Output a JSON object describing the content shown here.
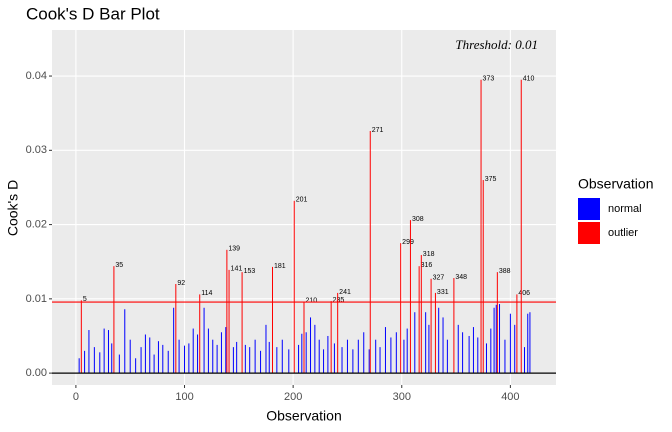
{
  "chart_data": {
    "type": "bar",
    "title": "Cook's D Bar Plot",
    "xlabel": "Observation",
    "ylabel": "Cook's D",
    "legend_title": "Observation",
    "legend_position": "right",
    "threshold": 0.00957,
    "threshold_label": "Threshold: 0.01",
    "threshold_color": "#ff0000",
    "threshold_label_color": "#8b0000",
    "xlim": [
      -22,
      442
    ],
    "xticks": [
      0,
      100,
      200,
      300,
      400
    ],
    "ylim": [
      -0.0016,
      0.0462
    ],
    "yticks": [
      {
        "value": 0,
        "label": "0.00"
      },
      0.01,
      0.02,
      0.03,
      0.04
    ],
    "grid": true,
    "series": [
      {
        "name": "normal",
        "color": "#0000ff",
        "x": [
          3,
          8,
          12,
          17,
          22,
          26,
          30,
          33,
          40,
          45,
          50,
          55,
          60,
          64,
          68,
          72,
          76,
          80,
          85,
          90,
          95,
          100,
          104,
          108,
          112,
          118,
          122,
          126,
          130,
          134,
          138,
          145,
          148,
          156,
          160,
          165,
          170,
          175,
          178,
          185,
          190,
          196,
          205,
          208,
          212,
          216,
          220,
          224,
          228,
          232,
          238,
          245,
          250,
          255,
          260,
          265,
          270,
          276,
          280,
          285,
          290,
          295,
          302,
          305,
          312,
          322,
          325,
          334,
          338,
          342,
          352,
          356,
          362,
          366,
          370,
          378,
          382,
          385,
          387,
          390,
          395,
          400,
          404,
          413,
          416,
          418
        ],
        "values": [
          0.002,
          0.003,
          0.0058,
          0.0035,
          0.0028,
          0.006,
          0.0058,
          0.004,
          0.0025,
          0.0086,
          0.0045,
          0.002,
          0.0035,
          0.0052,
          0.0048,
          0.0025,
          0.0043,
          0.0038,
          0.003,
          0.0088,
          0.0045,
          0.0037,
          0.004,
          0.006,
          0.0052,
          0.0088,
          0.006,
          0.0045,
          0.0038,
          0.0055,
          0.0062,
          0.0035,
          0.0042,
          0.0038,
          0.0035,
          0.0045,
          0.003,
          0.0065,
          0.0042,
          0.0035,
          0.0045,
          0.0032,
          0.0038,
          0.0053,
          0.0055,
          0.0075,
          0.0065,
          0.0045,
          0.0032,
          0.005,
          0.004,
          0.0035,
          0.0045,
          0.0032,
          0.0045,
          0.0055,
          0.0032,
          0.0045,
          0.0035,
          0.0062,
          0.0048,
          0.0055,
          0.0045,
          0.006,
          0.0082,
          0.0082,
          0.0065,
          0.0088,
          0.0075,
          0.0045,
          0.0065,
          0.0055,
          0.005,
          0.0062,
          0.0048,
          0.004,
          0.006,
          0.0088,
          0.0092,
          0.0093,
          0.0045,
          0.008,
          0.0065,
          0.0035,
          0.008,
          0.0082
        ]
      },
      {
        "name": "outlier",
        "color": "#ff0000",
        "x": [
          5,
          35,
          92,
          114,
          139,
          141,
          153,
          181,
          201,
          210,
          235,
          241,
          271,
          299,
          308,
          316,
          318,
          327,
          331,
          348,
          373,
          375,
          388,
          406,
          410
        ],
        "values": [
          0.0098,
          0.0144,
          0.012,
          0.0106,
          0.0166,
          0.0139,
          0.0136,
          0.0143,
          0.0232,
          0.0096,
          0.0097,
          0.0108,
          0.0326,
          0.0175,
          0.0206,
          0.0144,
          0.0159,
          0.0127,
          0.0108,
          0.0128,
          0.0395,
          0.026,
          0.0136,
          0.0106,
          0.0395
        ]
      }
    ]
  }
}
